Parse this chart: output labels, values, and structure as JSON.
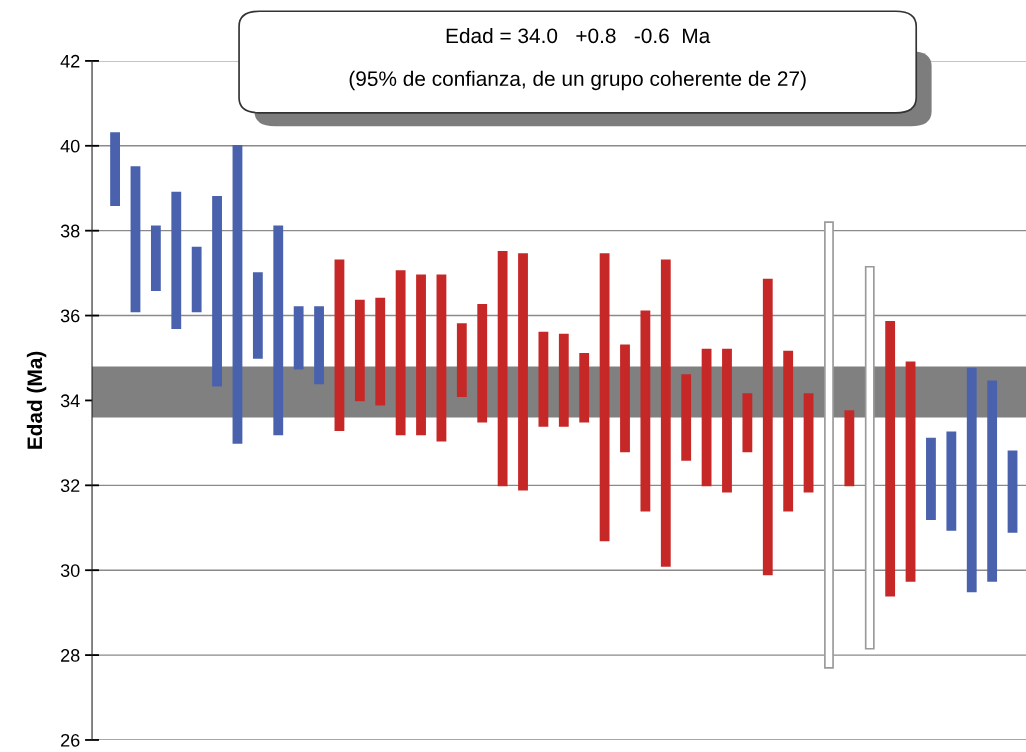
{
  "chart_data": {
    "type": "bar",
    "title": "Edad = 34.0   +0.8   -0.6  Ma",
    "subtitle": "(95% de confianza, de un grupo coherente de 27)",
    "ylabel": "Edad (Ma)",
    "categories": [
      null,
      null,
      null,
      null,
      null,
      null,
      null,
      null,
      null,
      null,
      null,
      null,
      null,
      null,
      null,
      null,
      null,
      null,
      null,
      null,
      null,
      null,
      null,
      null,
      null,
      null,
      null,
      null,
      null,
      null,
      null,
      null,
      null,
      null,
      null,
      null,
      null,
      null,
      null,
      null,
      null,
      null,
      null,
      null,
      null
    ],
    "base": [
      38.6,
      36.1,
      36.6,
      35.7,
      36.1,
      34.35,
      33.0,
      35.0,
      33.2,
      34.75,
      34.4,
      33.3,
      34.0,
      33.9,
      33.2,
      33.2,
      33.05,
      34.1,
      33.5,
      32.0,
      31.9,
      33.4,
      33.4,
      33.5,
      30.7,
      32.8,
      31.4,
      30.1,
      32.6,
      32.0,
      31.85,
      32.8,
      29.9,
      31.4,
      31.85,
      27.7,
      32.0,
      28.15,
      29.4,
      29.75,
      31.2,
      30.95,
      29.5,
      29.75,
      30.9
    ],
    "values": [
      1.7,
      3.4,
      1.5,
      3.2,
      1.5,
      4.45,
      7.0,
      2.0,
      4.9,
      1.45,
      1.8,
      4.0,
      2.35,
      2.5,
      3.85,
      3.75,
      3.9,
      1.7,
      2.75,
      5.5,
      5.55,
      2.2,
      2.15,
      1.6,
      6.75,
      2.5,
      4.7,
      7.2,
      2.0,
      3.2,
      3.35,
      1.35,
      6.95,
      3.75,
      2.3,
      10.5,
      1.75,
      9.0,
      6.45,
      5.15,
      1.9,
      2.3,
      5.25,
      4.7,
      1.9
    ],
    "colors": [
      "#4a62ad",
      "#4a62ad",
      "#4a62ad",
      "#4a62ad",
      "#4a62ad",
      "#4a62ad",
      "#4a62ad",
      "#4a62ad",
      "#4a62ad",
      "#4a62ad",
      "#4a62ad",
      "#c62828",
      "#c62828",
      "#c62828",
      "#c62828",
      "#c62828",
      "#c62828",
      "#c62828",
      "#c62828",
      "#c62828",
      "#c62828",
      "#c62828",
      "#c62828",
      "#c62828",
      "#c62828",
      "#c62828",
      "#c62828",
      "#c62828",
      "#c62828",
      "#c62828",
      "#c62828",
      "#c62828",
      "#c62828",
      "#c62828",
      "#c62828",
      "#ffffff",
      "#c62828",
      "#ffffff",
      "#c62828",
      "#c62828",
      "#4a62ad",
      "#4a62ad",
      "#4a62ad",
      "#4a62ad",
      "#4a62ad"
    ],
    "bands": [
      {
        "axis": "y",
        "from": 33.6,
        "to": 34.8,
        "color": "#808080"
      }
    ],
    "ylim": [
      26,
      42
    ],
    "yticks": [
      26,
      28,
      30,
      32,
      34,
      36,
      38,
      40,
      42
    ],
    "grid": "y",
    "tick_labels": "y"
  }
}
